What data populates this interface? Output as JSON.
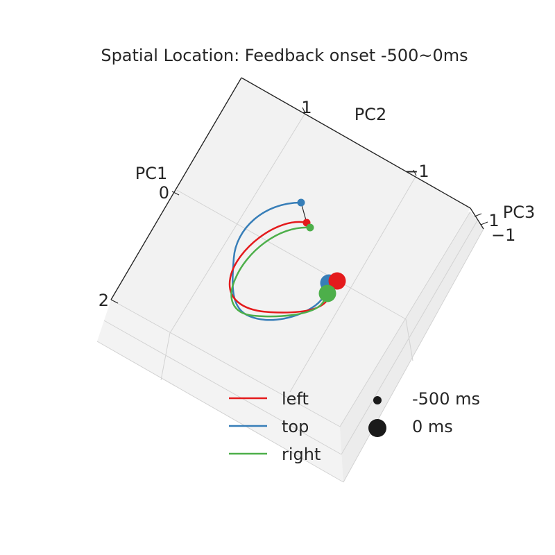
{
  "chart_data": {
    "type": "line",
    "title": "Spatial Location: Feedback onset -500~0ms",
    "projection": "3d",
    "axes": [
      {
        "name": "PC1",
        "label": "PC1",
        "ticks": [
          "0",
          "2"
        ]
      },
      {
        "name": "PC2",
        "label": "PC2",
        "ticks": [
          "1",
          "−1"
        ]
      },
      {
        "name": "PC3",
        "label": "PC3",
        "ticks": [
          "1",
          "−1"
        ]
      }
    ],
    "grid": true,
    "legend": {
      "placement": "bottom-right",
      "series_entries": [
        "left",
        "top",
        "right"
      ],
      "marker_entries": [
        {
          "label": "-500 ms",
          "marker": "small"
        },
        {
          "label": "0 ms",
          "marker": "large"
        }
      ]
    },
    "series": [
      {
        "name": "left",
        "color": "#e41a1c",
        "start": {
          "PC1": 0.9,
          "PC2": 0.1,
          "PC3": 0.0
        },
        "end": {
          "PC1": 1.4,
          "PC2": -0.1,
          "PC3": 0.0
        }
      },
      {
        "name": "top",
        "color": "#377eb8",
        "start": {
          "PC1": 0.8,
          "PC2": 0.15,
          "PC3": 0.0
        },
        "end": {
          "PC1": 1.4,
          "PC2": 0.0,
          "PC3": 0.0
        }
      },
      {
        "name": "right",
        "color": "#4daf4a",
        "start": {
          "PC1": 0.95,
          "PC2": 0.05,
          "PC3": 0.0
        },
        "end": {
          "PC1": 1.5,
          "PC2": -0.05,
          "PC3": 0.0
        }
      }
    ]
  }
}
